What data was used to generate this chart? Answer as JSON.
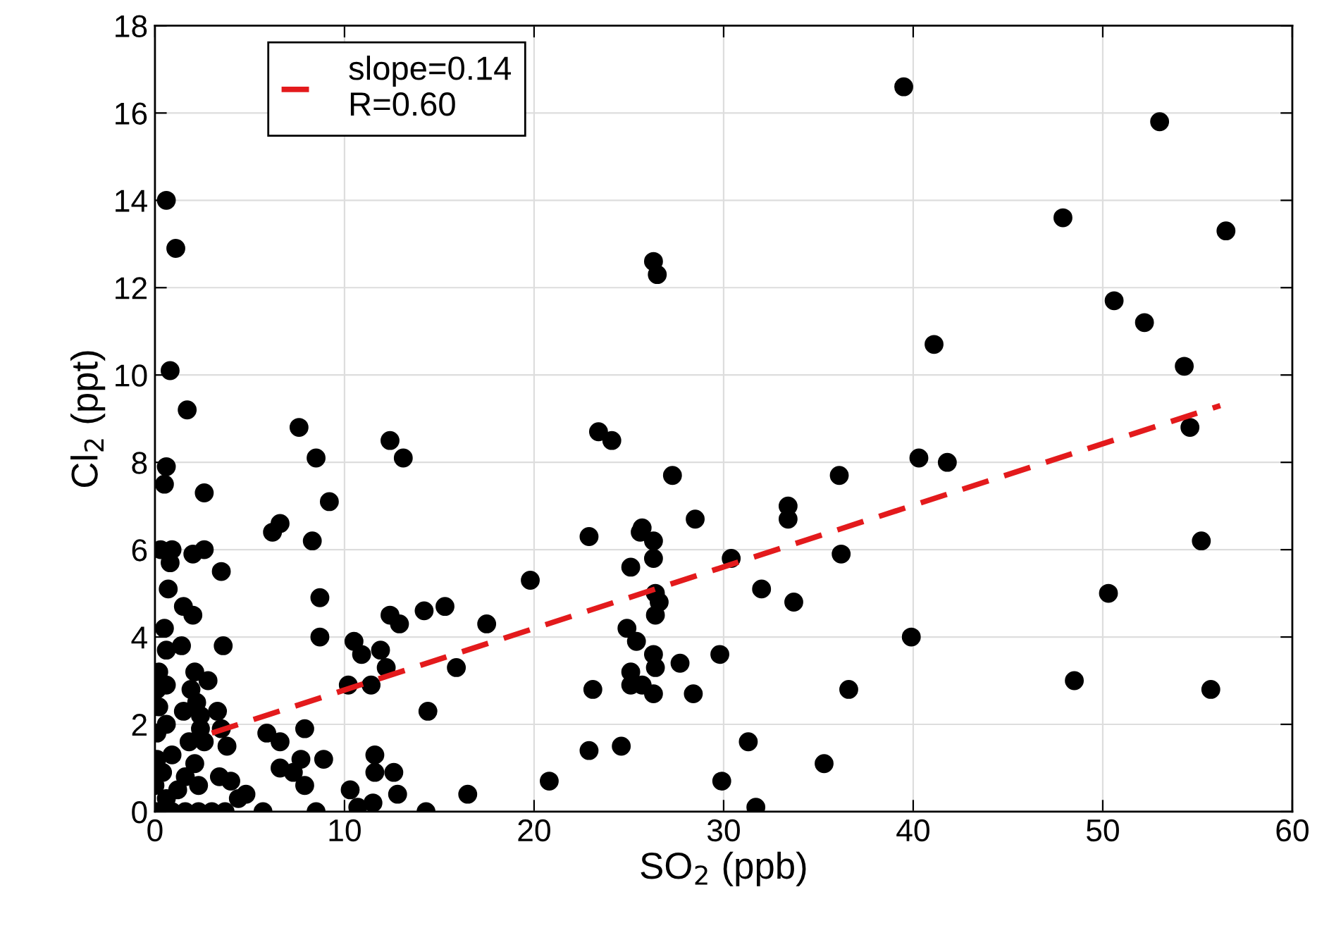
{
  "chart_data": {
    "type": "scatter",
    "xlabel": "SO$_{2}$ (ppb)",
    "ylabel": "Cl$_{2}$ (ppt)",
    "xlim": [
      0,
      60
    ],
    "xticks": [
      0,
      10,
      20,
      30,
      40,
      50,
      60
    ],
    "ylim": [
      0,
      18
    ],
    "yticks": [
      0,
      2,
      4,
      6,
      8,
      10,
      12,
      14,
      16,
      18
    ],
    "grid": true,
    "legend": "top left",
    "series": [
      {
        "color": "#000000",
        "marker": "circle",
        "x": [
          39.5,
          53.0,
          47.9,
          56.5,
          26.3,
          26.5,
          50.6,
          52.2,
          41.1,
          54.3,
          54.6,
          23.4,
          24.1,
          40.3,
          41.8,
          27.3,
          36.1,
          28.5,
          33.4,
          33.4,
          22.9,
          25.7,
          25.6,
          26.3,
          26.3,
          30.4,
          36.2,
          55.2,
          25.1,
          32.0,
          26.4,
          26.6,
          33.7,
          26.4,
          50.3,
          24.9,
          25.4,
          39.9,
          29.8,
          26.3,
          26.4,
          27.7,
          25.1,
          25.1,
          25.7,
          26.3,
          23.1,
          28.4,
          36.6,
          48.5,
          55.7,
          22.9,
          24.6,
          31.3,
          35.3,
          29.9,
          20.8,
          31.7,
          19.8,
          0.6,
          1.1,
          0.8,
          1.7,
          7.6,
          8.5,
          12.4,
          13.1,
          0.6,
          0.5,
          2.6,
          9.2,
          6.2,
          6.6,
          8.3,
          0.3,
          0.9,
          0.8,
          2.0,
          2.6,
          3.5,
          0.7,
          8.7,
          1.5,
          2.0,
          0.5,
          0.6,
          1.4,
          3.6,
          8.7,
          10.5,
          10.9,
          11.9,
          12.4,
          12.9,
          14.2,
          15.3,
          17.5,
          12.2,
          10.2,
          11.4,
          15.9,
          14.4,
          0.2,
          2.1,
          2.8,
          1.9,
          0.1,
          0.6,
          2.2,
          1.5,
          0.2,
          3.3,
          3.5,
          2.4,
          2.4,
          0.6,
          0.1,
          1.8,
          2.6,
          3.8,
          5.9,
          6.6,
          7.9,
          8.9,
          7.7,
          6.6,
          7.3,
          7.9,
          11.6,
          11.6,
          12.6,
          16.5,
          0.1,
          0.9,
          2.1,
          0.4,
          1.2,
          2.3,
          3.4,
          4.0,
          4.4,
          4.8,
          10.3,
          12.8,
          0.1,
          0.9,
          1.6,
          2.3,
          3.0,
          3.7,
          5.7,
          8.5,
          10.7,
          11.5,
          14.3,
          0.6,
          0.0,
          1.6
        ],
        "values": [
          16.6,
          15.8,
          13.6,
          13.3,
          12.6,
          12.3,
          11.7,
          11.2,
          10.7,
          10.2,
          8.8,
          8.7,
          8.5,
          8.1,
          8.0,
          7.7,
          7.7,
          6.7,
          7.0,
          6.7,
          6.3,
          6.5,
          6.4,
          6.2,
          5.8,
          5.8,
          5.9,
          6.2,
          5.6,
          5.1,
          5.0,
          4.8,
          4.8,
          4.5,
          5.0,
          4.2,
          3.9,
          4.0,
          3.6,
          3.6,
          3.3,
          3.4,
          3.2,
          2.9,
          2.9,
          2.7,
          2.8,
          2.7,
          2.8,
          3.0,
          2.8,
          1.4,
          1.5,
          1.6,
          1.1,
          0.7,
          0.7,
          0.1,
          5.3,
          14.0,
          12.9,
          10.1,
          9.2,
          8.8,
          8.1,
          8.5,
          8.1,
          7.9,
          7.5,
          7.3,
          7.1,
          6.4,
          6.6,
          6.2,
          6.0,
          6.0,
          5.7,
          5.9,
          6.0,
          5.5,
          5.1,
          4.9,
          4.7,
          4.5,
          4.2,
          3.7,
          3.8,
          3.8,
          4.0,
          3.9,
          3.6,
          3.7,
          4.5,
          4.3,
          4.6,
          4.7,
          4.3,
          3.3,
          2.9,
          2.9,
          3.3,
          2.3,
          3.2,
          3.2,
          3.0,
          2.8,
          2.8,
          2.9,
          2.5,
          2.3,
          2.4,
          2.3,
          1.9,
          2.2,
          1.9,
          2.0,
          1.8,
          1.6,
          1.6,
          1.5,
          1.8,
          1.6,
          1.9,
          1.2,
          1.2,
          1.0,
          0.9,
          0.6,
          1.3,
          0.9,
          0.9,
          0.4,
          1.2,
          1.3,
          1.1,
          0.9,
          0.5,
          0.6,
          0.8,
          0.7,
          0.3,
          0.4,
          0.5,
          0.4,
          0.0,
          0.0,
          0.0,
          0.0,
          0.0,
          0.0,
          0.0,
          0.0,
          0.1,
          0.2,
          0.0,
          0.3,
          0.6,
          0.8
        ]
      },
      {
        "type": "line",
        "name": "slope=0.14\nR=0.60",
        "color": "#e31a1c",
        "line_style": "dashed",
        "x": [
          3.0,
          56.2
        ],
        "values": [
          1.8,
          9.3
        ]
      }
    ]
  }
}
